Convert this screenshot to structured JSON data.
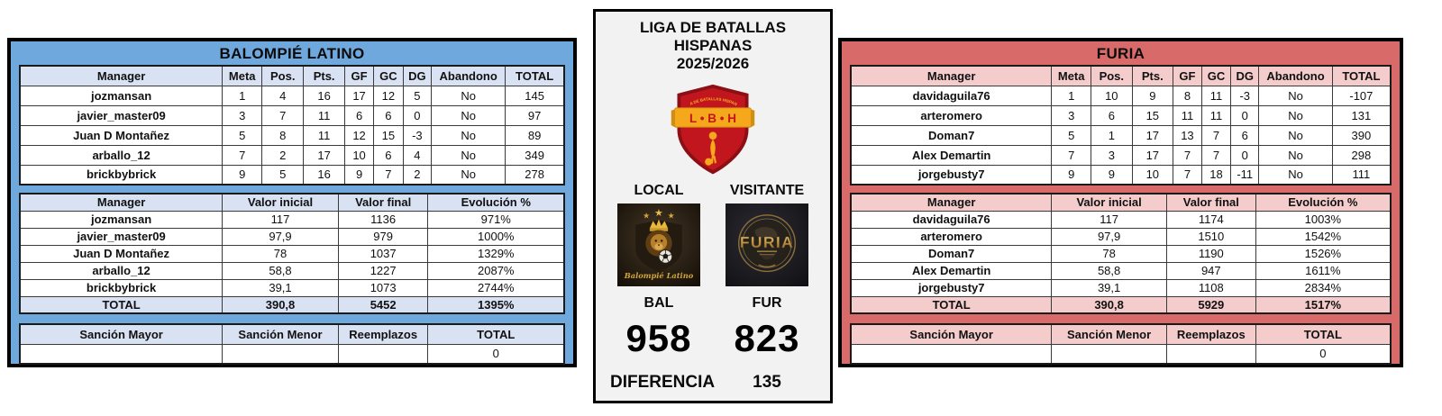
{
  "league": {
    "title": "LIGA DE BATALLAS HISPANAS",
    "season": "2025/2026",
    "logo": {
      "initials": "L • B • H",
      "arc_text": "LIGA DE BATALLAS HISPANAS"
    },
    "local": {
      "label": "LOCAL",
      "abbr": "BAL",
      "score": "958",
      "logo_caption": "Balompié Latino"
    },
    "visitante": {
      "label": "VISITANTE",
      "abbr": "FUR",
      "score": "823",
      "logo_caption": "FURIA"
    },
    "diferencia": {
      "label": "DIFERENCIA",
      "value": "135"
    }
  },
  "balompie": {
    "title": "BALOMPIÉ LATINO",
    "colors": {
      "panel": "#6fa8dc",
      "header": "#d9e2f3"
    },
    "stats": {
      "headers": [
        "Manager",
        "Meta",
        "Pos.",
        "Pts.",
        "GF",
        "GC",
        "DG",
        "Abandono",
        "TOTAL"
      ],
      "rows": [
        [
          "jozmansan",
          "1",
          "4",
          "16",
          "17",
          "12",
          "5",
          "No",
          "145"
        ],
        [
          "javier_master09",
          "3",
          "7",
          "11",
          "6",
          "6",
          "0",
          "No",
          "97"
        ],
        [
          "Juan D Montañez",
          "5",
          "8",
          "11",
          "12",
          "15",
          "-3",
          "No",
          "89"
        ],
        [
          "arballo_12",
          "7",
          "2",
          "17",
          "10",
          "6",
          "4",
          "No",
          "349"
        ],
        [
          "brickbybrick",
          "9",
          "5",
          "16",
          "9",
          "7",
          "2",
          "No",
          "278"
        ]
      ]
    },
    "values": {
      "headers": [
        "Manager",
        "Valor inicial",
        "Valor final",
        "Evolución %"
      ],
      "rows": [
        [
          "jozmansan",
          "117",
          "1136",
          "971%"
        ],
        [
          "javier_master09",
          "97,9",
          "979",
          "1000%"
        ],
        [
          "Juan D Montañez",
          "78",
          "1037",
          "1329%"
        ],
        [
          "arballo_12",
          "58,8",
          "1227",
          "2087%"
        ],
        [
          "brickbybrick",
          "39,1",
          "1073",
          "2744%"
        ]
      ],
      "total_rows": [
        [
          "TOTAL",
          "390,8",
          "5452",
          "1395%"
        ]
      ]
    },
    "sanctions": {
      "headers": [
        "Sanción Mayor",
        "Sanción Menor",
        "Reemplazos",
        "TOTAL"
      ],
      "rows": [
        [
          "",
          "",
          "",
          "0"
        ]
      ]
    }
  },
  "furia": {
    "title": "FURIA",
    "colors": {
      "panel": "#d96a6a",
      "header": "#f4cccc"
    },
    "stats": {
      "headers": [
        "Manager",
        "Meta",
        "Pos.",
        "Pts.",
        "GF",
        "GC",
        "DG",
        "Abandono",
        "TOTAL"
      ],
      "rows": [
        [
          "davidaguila76",
          "1",
          "10",
          "9",
          "8",
          "11",
          "-3",
          "No",
          "-107"
        ],
        [
          "arteromero",
          "3",
          "6",
          "15",
          "11",
          "11",
          "0",
          "No",
          "131"
        ],
        [
          "Doman7",
          "5",
          "1",
          "17",
          "13",
          "7",
          "6",
          "No",
          "390"
        ],
        [
          "Alex Demartin",
          "7",
          "3",
          "17",
          "7",
          "7",
          "0",
          "No",
          "298"
        ],
        [
          "jorgebusty7",
          "9",
          "9",
          "10",
          "7",
          "18",
          "-11",
          "No",
          "111"
        ]
      ]
    },
    "values": {
      "headers": [
        "Manager",
        "Valor inicial",
        "Valor final",
        "Evolución %"
      ],
      "rows": [
        [
          "davidaguila76",
          "117",
          "1174",
          "1003%"
        ],
        [
          "arteromero",
          "97,9",
          "1510",
          "1542%"
        ],
        [
          "Doman7",
          "78",
          "1190",
          "1526%"
        ],
        [
          "Alex Demartin",
          "58,8",
          "947",
          "1611%"
        ],
        [
          "jorgebusty7",
          "39,1",
          "1108",
          "2834%"
        ]
      ],
      "total_rows": [
        [
          "TOTAL",
          "390,8",
          "5929",
          "1517%"
        ]
      ]
    },
    "sanctions": {
      "headers": [
        "Sanción Mayor",
        "Sanción Menor",
        "Reemplazos",
        "TOTAL"
      ],
      "rows": [
        [
          "",
          "",
          "",
          "0"
        ]
      ]
    }
  }
}
